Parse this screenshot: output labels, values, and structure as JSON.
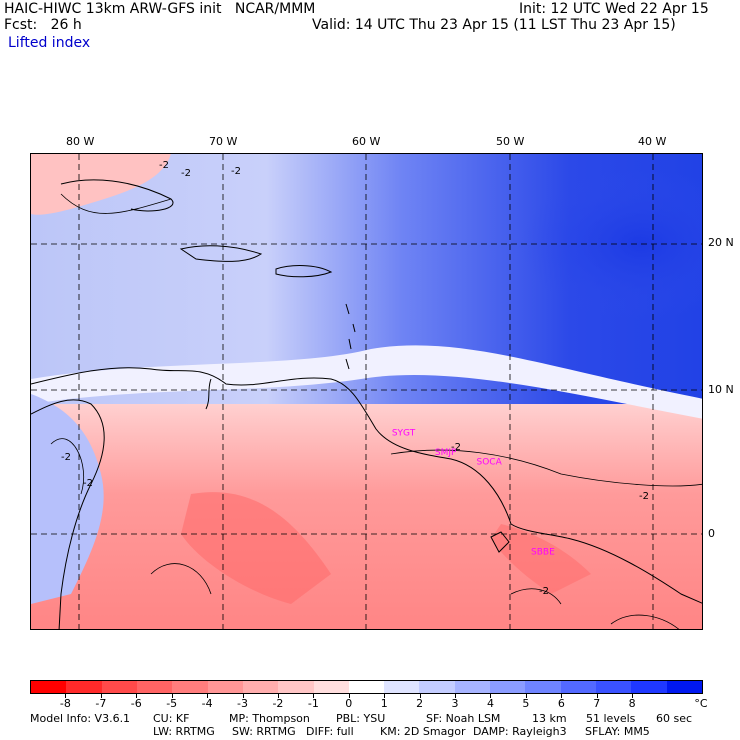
{
  "header": {
    "model": "HAIC-HIWC 13km ARW-GFS init   NCAR/MMM",
    "init": "Init: 12 UTC Wed 22 Apr 15",
    "fcst": "Fcst:   26 h",
    "valid": "Valid: 14 UTC Thu 23 Apr 15 (11 LST Thu 23 Apr 15)",
    "field": "Lifted index"
  },
  "axes": {
    "lon_labels": [
      "80 W",
      "70 W",
      "60 W",
      "50 W",
      "40 W"
    ],
    "lat_labels": [
      "20 N",
      "10 N",
      "0"
    ]
  },
  "stations": [
    {
      "id": "SYGT",
      "lon": -58.2,
      "lat": 6.8
    },
    {
      "id": "SMJP",
      "lon": -55.2,
      "lat": 5.45
    },
    {
      "id": "SOCA",
      "lon": -52.3,
      "lat": 4.8
    },
    {
      "id": "SBBE",
      "lon": -48.5,
      "lat": -1.4
    }
  ],
  "contour_labels": [
    "-2",
    "-2",
    "-2",
    "-2",
    "-2",
    "-2",
    "-2",
    "-2"
  ],
  "colorbar": {
    "colors": [
      "#ff0000",
      "#ff2a2a",
      "#ff4a4a",
      "#ff6464",
      "#ff7d7d",
      "#ff9696",
      "#ffaeae",
      "#ffc6c6",
      "#ffdede",
      "#ffffff",
      "#dfe4ff",
      "#c4cdff",
      "#a7b4ff",
      "#8b9cff",
      "#6f84ff",
      "#5369ff",
      "#3a52ff",
      "#1f38ff",
      "#0018f0"
    ],
    "ticks": [
      "-8",
      "-7",
      "-6",
      "-5",
      "-4",
      "-3",
      "-2",
      "-1",
      "0",
      "1",
      "2",
      "3",
      "4",
      "5",
      "6",
      "7",
      "8"
    ],
    "unit": "°C"
  },
  "footer": {
    "line1": {
      "model_info": "Model Info: V3.6.1",
      "cu": "CU: KF",
      "mp": "MP: Thompson",
      "pbl": "PBL: YSU",
      "sf": "SF: Noah LSM",
      "res": "13 km",
      "levels": "51 levels",
      "dt": "60 sec"
    },
    "line2": {
      "lw": "LW: RRTMG",
      "sw": "SW: RRTMG",
      "diff": "DIFF: full",
      "km": "KM: 2D Smagor",
      "damp": "DAMP: Rayleigh3",
      "sflay": "SFLAY: MM5"
    }
  }
}
